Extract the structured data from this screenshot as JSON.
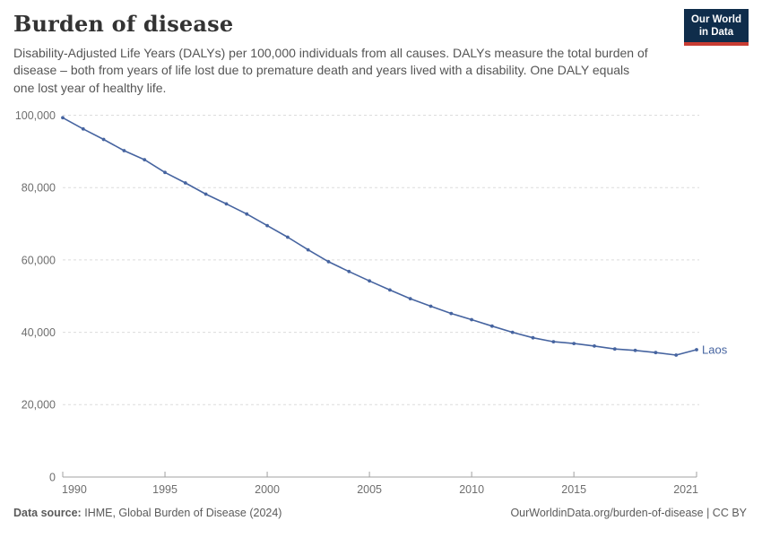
{
  "header": {
    "title": "Burden of disease",
    "subtitle": "Disability-Adjusted Life Years (DALYs) per 100,000 individuals from all causes. DALYs measure the total burden of disease – both from years of life lost due to premature death and years lived with a disability. One DALY equals one lost year of healthy life.",
    "logo": {
      "line1": "Our World",
      "line2": "in Data"
    }
  },
  "chart_data": {
    "type": "line",
    "title": "Burden of disease",
    "xlabel": "",
    "ylabel": "DALYs per 100,000 individuals",
    "xlim": [
      1990,
      2021
    ],
    "ylim": [
      0,
      100000
    ],
    "x_ticks": [
      1990,
      1995,
      2000,
      2005,
      2010,
      2015,
      2021
    ],
    "y_ticks": [
      0,
      20000,
      40000,
      60000,
      80000,
      100000
    ],
    "grid": "horizontal-dashed",
    "legend_position": "end-of-line-label",
    "series": [
      {
        "name": "Laos",
        "x": [
          1990,
          1991,
          1992,
          1993,
          1994,
          1995,
          1996,
          1997,
          1998,
          1999,
          2000,
          2001,
          2002,
          2003,
          2004,
          2005,
          2006,
          2007,
          2008,
          2009,
          2010,
          2011,
          2012,
          2013,
          2014,
          2015,
          2016,
          2017,
          2018,
          2019,
          2020,
          2021
        ],
        "values": [
          99300,
          96200,
          93300,
          90200,
          87700,
          84200,
          81300,
          78200,
          75500,
          72700,
          69500,
          66300,
          62800,
          59500,
          56800,
          54200,
          51700,
          49300,
          47200,
          45200,
          43500,
          41700,
          40000,
          38500,
          37400,
          36900,
          36200,
          35400,
          35000,
          34400,
          33700,
          35200
        ]
      }
    ]
  },
  "footer": {
    "source_label": "Data source:",
    "source_value": "IHME, Global Burden of Disease (2024)",
    "attribution": "OurWorldinData.org/burden-of-disease | CC BY"
  },
  "colors": {
    "line": "#4664a0",
    "end_label": "#4664a0",
    "grid": "#dcdcdc",
    "axis": "#a1a1a1",
    "tick_label": "#6e6e6e",
    "logo_navy": "#0f2d4b",
    "logo_red": "#c83c32",
    "title_text": "#333333",
    "subtitle_text": "#555555",
    "footer_text": "#5b5b5b"
  }
}
